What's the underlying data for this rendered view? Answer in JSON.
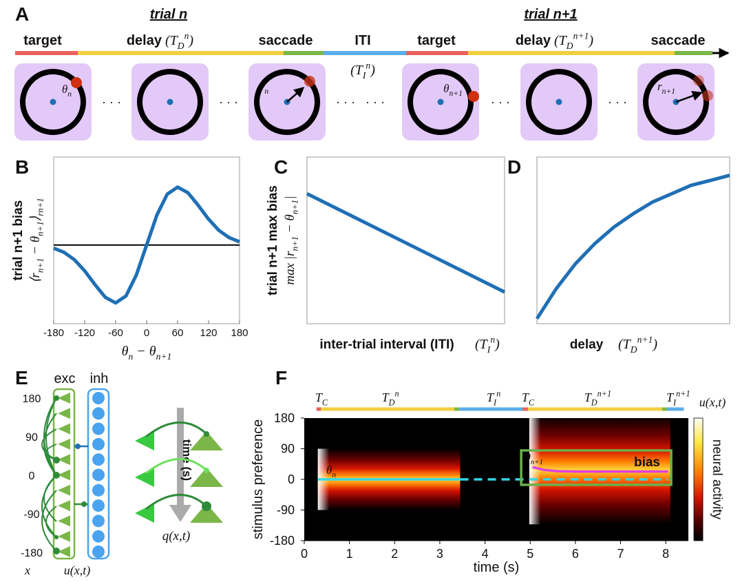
{
  "panel_labels": [
    "A",
    "B",
    "C",
    "D",
    "E",
    "F"
  ],
  "panel_a": {
    "trial_labels": [
      "trial n",
      "trial n+1"
    ],
    "phase_labels": [
      "target",
      "delay",
      "saccade",
      "ITI",
      "target",
      "delay",
      "saccade"
    ],
    "delay_math": [
      [
        {
          "t": "("
        },
        {
          "t": "T"
        },
        {
          "sub": "D"
        },
        {
          "sup": "n"
        },
        {
          "t": ")"
        }
      ],
      [
        {
          "t": "("
        },
        {
          "t": "T"
        },
        {
          "sub": "D"
        },
        {
          "sup": "n+1"
        },
        {
          "t": ")"
        }
      ]
    ],
    "iti_math": [
      {
        "t": "("
      },
      {
        "t": "T"
      },
      {
        "sub": "I"
      },
      {
        "sup": "n"
      },
      {
        "t": ")"
      }
    ],
    "circle_labels": [
      [
        {
          "t": "θ"
        },
        {
          "sub": "n"
        }
      ],
      [
        {
          "t": "r"
        },
        {
          "sub": "n"
        }
      ],
      [
        {
          "t": "θ"
        },
        {
          "sub": "n+1"
        }
      ],
      [
        {
          "t": "r"
        },
        {
          "sub": "n+1"
        }
      ]
    ],
    "ellipsis": "· · ·"
  },
  "panel_e": {
    "columns": [
      "exc",
      "inh"
    ],
    "ticks": [
      "180",
      "90",
      "0",
      "-90",
      "-180"
    ],
    "x_label": [
      {
        "t": "x"
      }
    ],
    "u_label": [
      {
        "t": "u(x,t)"
      }
    ],
    "time_label": "time (s)",
    "q_label": [
      {
        "t": "q(x,t)"
      }
    ]
  },
  "chart_data": [
    {
      "type": "line",
      "x": [
        -180,
        -160,
        -140,
        -120,
        -100,
        -80,
        -60,
        -40,
        -20,
        0,
        20,
        40,
        60,
        80,
        100,
        120,
        140,
        160,
        180
      ],
      "values": [
        -0.055,
        -0.126,
        -0.253,
        -0.446,
        -0.685,
        -0.904,
        -1,
        -0.88,
        -0.52,
        0,
        0.52,
        0.88,
        1,
        0.904,
        0.685,
        0.446,
        0.253,
        0.126,
        0.055
      ],
      "color": "#1f6fb5",
      "xlim": [
        -180,
        180
      ],
      "ylim": [
        -1.36,
        1.52
      ],
      "xticks": [
        -180,
        -120,
        -60,
        0,
        60,
        120,
        180
      ],
      "reference_line": 0,
      "ylabel": "trial n+1 bias",
      "ylabel_math": [
        {
          "t": "⟨r"
        },
        {
          "sub": "n+1"
        },
        {
          "t": " − θ"
        },
        {
          "sub": "n+1"
        },
        {
          "t": "⟩"
        },
        {
          "sub": "r"
        },
        {
          "sub": "n+1"
        }
      ],
      "xlabel_math": [
        {
          "t": "θ"
        },
        {
          "sub": "n"
        },
        {
          "t": " − θ"
        },
        {
          "sub": "n+1"
        }
      ]
    },
    {
      "type": "line",
      "x": [
        0,
        1
      ],
      "values": [
        0.78,
        0.19
      ],
      "color": "#1f6fb5",
      "xlim": [
        0,
        1
      ],
      "ylim": [
        0,
        1
      ],
      "ylabel": "trial n+1 max bias",
      "ylabel_math": [
        {
          "t": "max |r"
        },
        {
          "sub": "n+1"
        },
        {
          "t": " − θ"
        },
        {
          "sub": "n+1"
        },
        {
          "t": "|"
        }
      ],
      "xlabel": "inter-trial interval (ITI)",
      "xlabel_math": [
        {
          "t": "("
        },
        {
          "t": "T"
        },
        {
          "sub": "I"
        },
        {
          "sup": "n"
        },
        {
          "t": ")"
        }
      ]
    },
    {
      "type": "line",
      "x": [
        0,
        0.1,
        0.2,
        0.3,
        0.4,
        0.5,
        0.6,
        0.7,
        0.8,
        0.9,
        1
      ],
      "values": [
        0.03,
        0.21,
        0.36,
        0.48,
        0.58,
        0.66,
        0.73,
        0.78,
        0.83,
        0.86,
        0.89
      ],
      "color": "#1f6fb5",
      "xlim": [
        0,
        1
      ],
      "ylim": [
        0,
        1
      ],
      "xlabel": "delay",
      "xlabel_math": [
        {
          "t": "("
        },
        {
          "t": "T"
        },
        {
          "sub": "D"
        },
        {
          "sup": "n+1"
        },
        {
          "t": ")"
        }
      ]
    },
    {
      "type": "heatmap",
      "xlim": [
        0,
        8.5
      ],
      "ylim": [
        -180,
        180
      ],
      "xticks": [
        0,
        1,
        2,
        3,
        4,
        5,
        6,
        7,
        8
      ],
      "yticks": [
        180,
        90,
        0,
        -90,
        -180
      ],
      "xlabel": "time (s)",
      "ylabel": "stimulus preference",
      "colorbar_label": "neural activity",
      "colorbar_math": [
        {
          "t": "u(x,t)"
        }
      ],
      "bumps": [
        {
          "start": 0.3,
          "end": 3.45,
          "center": 0,
          "halfwidth": 90
        },
        {
          "start": 4.98,
          "end": 8.1,
          "center": 28,
          "halfwidth": 160
        }
      ],
      "epochs": [
        {
          "start": 0.27,
          "end": 0.37,
          "color": "#e8605f",
          "label": [
            {
              "t": "T"
            },
            {
              "sub": "C"
            }
          ]
        },
        {
          "start": 0.37,
          "end": 3.32,
          "color": "#f2cf3e",
          "label": [
            {
              "t": "T"
            },
            {
              "sub": "D"
            },
            {
              "sup": "n"
            }
          ]
        },
        {
          "start": 3.32,
          "end": 3.43,
          "color": "#7ab648"
        },
        {
          "start": 3.43,
          "end": 4.83,
          "color": "#5aaeea",
          "label": [
            {
              "t": "T"
            },
            {
              "sub": "I"
            },
            {
              "sup": "n"
            }
          ]
        },
        {
          "start": 4.83,
          "end": 4.95,
          "color": "#e8605f",
          "label": [
            {
              "t": "T"
            },
            {
              "sub": "C"
            }
          ]
        },
        {
          "start": 4.95,
          "end": 7.92,
          "color": "#f2cf3e",
          "label": [
            {
              "t": "T"
            },
            {
              "sub": "D"
            },
            {
              "sup": "n+1"
            }
          ]
        },
        {
          "start": 7.92,
          "end": 8.03,
          "color": "#7ab648"
        },
        {
          "start": 8.03,
          "end": 8.4,
          "color": "#5aaeea",
          "label": [
            {
              "t": "T"
            },
            {
              "sub": "I"
            },
            {
              "sup": "n+1"
            }
          ]
        }
      ],
      "target_trace": {
        "x": [
          0.3,
          3.45
        ],
        "values": [
          0,
          0
        ],
        "color": "#35d6e6"
      },
      "target_dashed": {
        "x": [
          3.45,
          8.05
        ],
        "values": [
          0,
          0
        ],
        "color": "#35d6e6"
      },
      "bias_trace": {
        "x": [
          5.05,
          5.3,
          5.6,
          6.0,
          8.05
        ],
        "values": [
          36,
          28,
          24,
          23,
          23
        ],
        "color": "#e040e0"
      },
      "highlight_box": {
        "x": [
          4.8,
          8.12
        ],
        "y": [
          85,
          -16
        ],
        "color": "#6ab04c"
      },
      "target_label": [
        {
          "t": "θ"
        },
        {
          "sub": "n"
        }
      ],
      "probe_label": [
        {
          "t": "θ"
        },
        {
          "sub": "n+1"
        }
      ],
      "bias_label": "bias"
    }
  ]
}
